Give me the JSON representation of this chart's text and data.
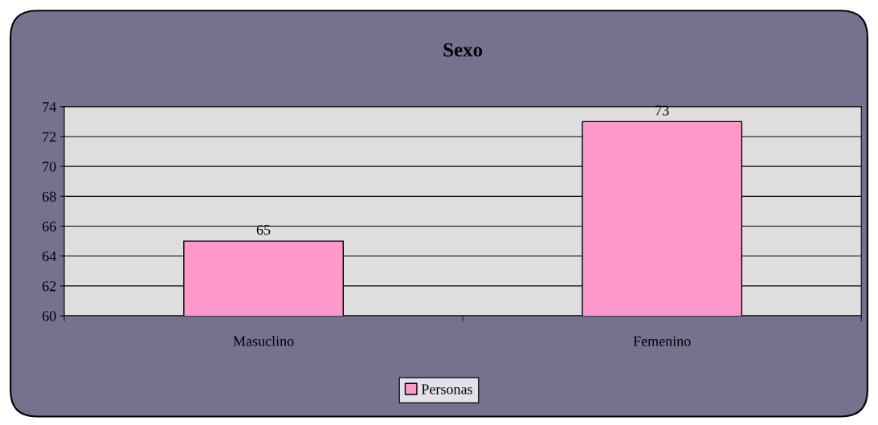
{
  "chart_data": {
    "type": "bar",
    "title": "Sexo",
    "categories": [
      "Masuclino",
      "Femenino"
    ],
    "series": [
      {
        "name": "Personas",
        "color": "#ff99cc",
        "values": [
          65,
          73
        ]
      }
    ],
    "ylim": [
      60,
      74
    ],
    "yticks": [
      60,
      62,
      64,
      66,
      68,
      70,
      72,
      74
    ],
    "grid": "y",
    "legend": "bottom",
    "data_labels": true
  }
}
